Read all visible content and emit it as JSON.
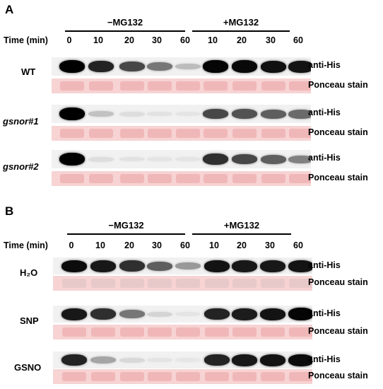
{
  "panels": [
    {
      "label": "A",
      "group_minus": "−MG132",
      "group_plus": "+MG132",
      "time_label": "Time (min)",
      "times_minus": [
        "0",
        "10",
        "20",
        "30",
        "60"
      ],
      "times_plus": [
        "10",
        "20",
        "30",
        "60"
      ],
      "rows": [
        {
          "name": "WT",
          "italic": false,
          "blot_label": "anti-His",
          "stain_label": "Ponceau stain",
          "intensities": [
            1.0,
            0.85,
            0.7,
            0.5,
            0.2,
            0.98,
            0.96,
            0.93,
            0.92
          ]
        },
        {
          "name": "gsnor#1",
          "italic": true,
          "blot_label": "anti-His",
          "stain_label": "Ponceau stain",
          "intensities": [
            1.0,
            0.18,
            0.06,
            0.04,
            0.03,
            0.7,
            0.65,
            0.6,
            0.55
          ]
        },
        {
          "name": "gsnor#2",
          "italic": true,
          "blot_label": "anti-His",
          "stain_label": "Ponceau stain",
          "intensities": [
            1.0,
            0.06,
            0.04,
            0.03,
            0.03,
            0.8,
            0.7,
            0.6,
            0.45
          ]
        }
      ]
    },
    {
      "label": "B",
      "group_minus": "−MG132",
      "group_plus": "+MG132",
      "time_label": "Time (min)",
      "times_minus": [
        "0",
        "10",
        "20",
        "30",
        "60"
      ],
      "times_plus": [
        "10",
        "20",
        "30",
        "60"
      ],
      "rows": [
        {
          "name": "H₂O",
          "italic": false,
          "blot_label": "anti-His",
          "stain_label": "Ponceau stain",
          "intensities": [
            0.95,
            0.9,
            0.8,
            0.6,
            0.35,
            0.92,
            0.9,
            0.9,
            0.92
          ]
        },
        {
          "name": "SNP",
          "italic": false,
          "blot_label": "anti-His",
          "stain_label": "Ponceau stain",
          "intensities": [
            0.9,
            0.8,
            0.5,
            0.1,
            0.03,
            0.85,
            0.88,
            0.92,
            0.98
          ]
        },
        {
          "name": "GSNO",
          "italic": false,
          "blot_label": "anti-His",
          "stain_label": "Ponceau stain",
          "intensities": [
            0.85,
            0.3,
            0.08,
            0.03,
            0.02,
            0.85,
            0.9,
            0.92,
            0.95
          ]
        }
      ]
    }
  ]
}
